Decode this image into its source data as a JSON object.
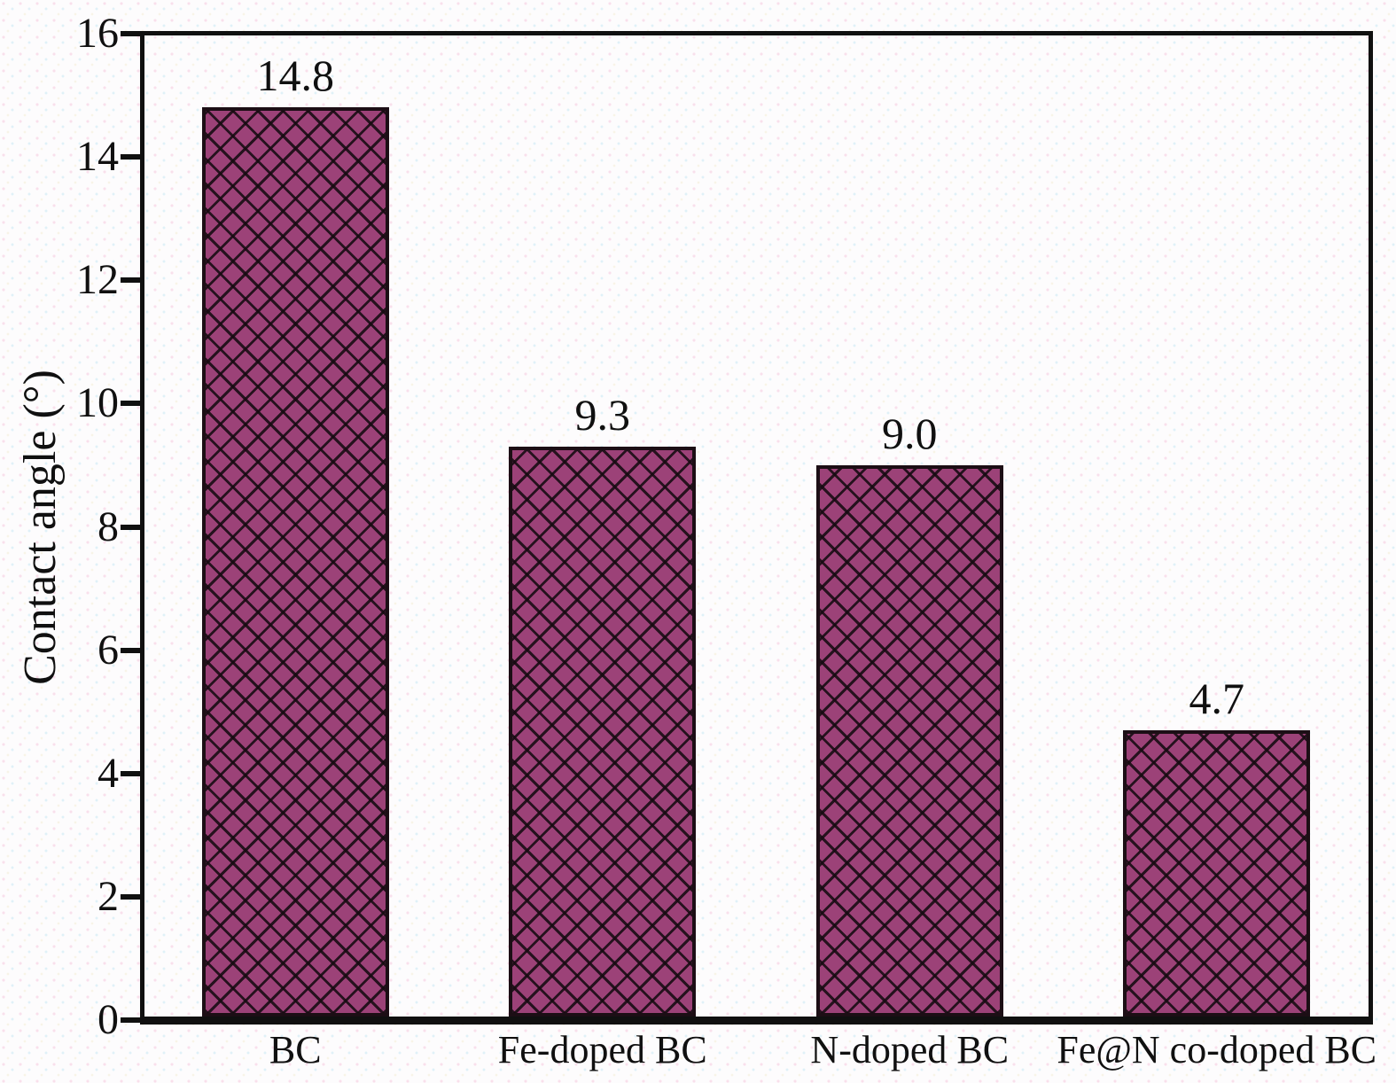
{
  "chart_data": {
    "type": "bar",
    "title": "",
    "xlabel": "",
    "ylabel": "Contact angle (°)",
    "categories": [
      "BC",
      "Fe-doped BC",
      "N-doped BC",
      "Fe@N co-doped BC"
    ],
    "values": [
      14.8,
      9.3,
      9.0,
      4.7
    ],
    "value_labels": [
      "14.8",
      "9.3",
      "9.0",
      "4.7"
    ],
    "ylim": [
      0,
      16
    ],
    "yticks": [
      "0",
      "2",
      "4",
      "6",
      "8",
      "10",
      "12",
      "14",
      "16"
    ],
    "grid": false,
    "legend": false,
    "colors": {
      "bar_fill": "#9c4278",
      "bar_hatch_line": "rgba(22,11,17,0.88)",
      "bar_edge": "#1c0e15",
      "axis": "#101010",
      "text": "#101010"
    },
    "style": {
      "hatch": "diagonal-crosshatch",
      "tick_direction": "out"
    }
  }
}
